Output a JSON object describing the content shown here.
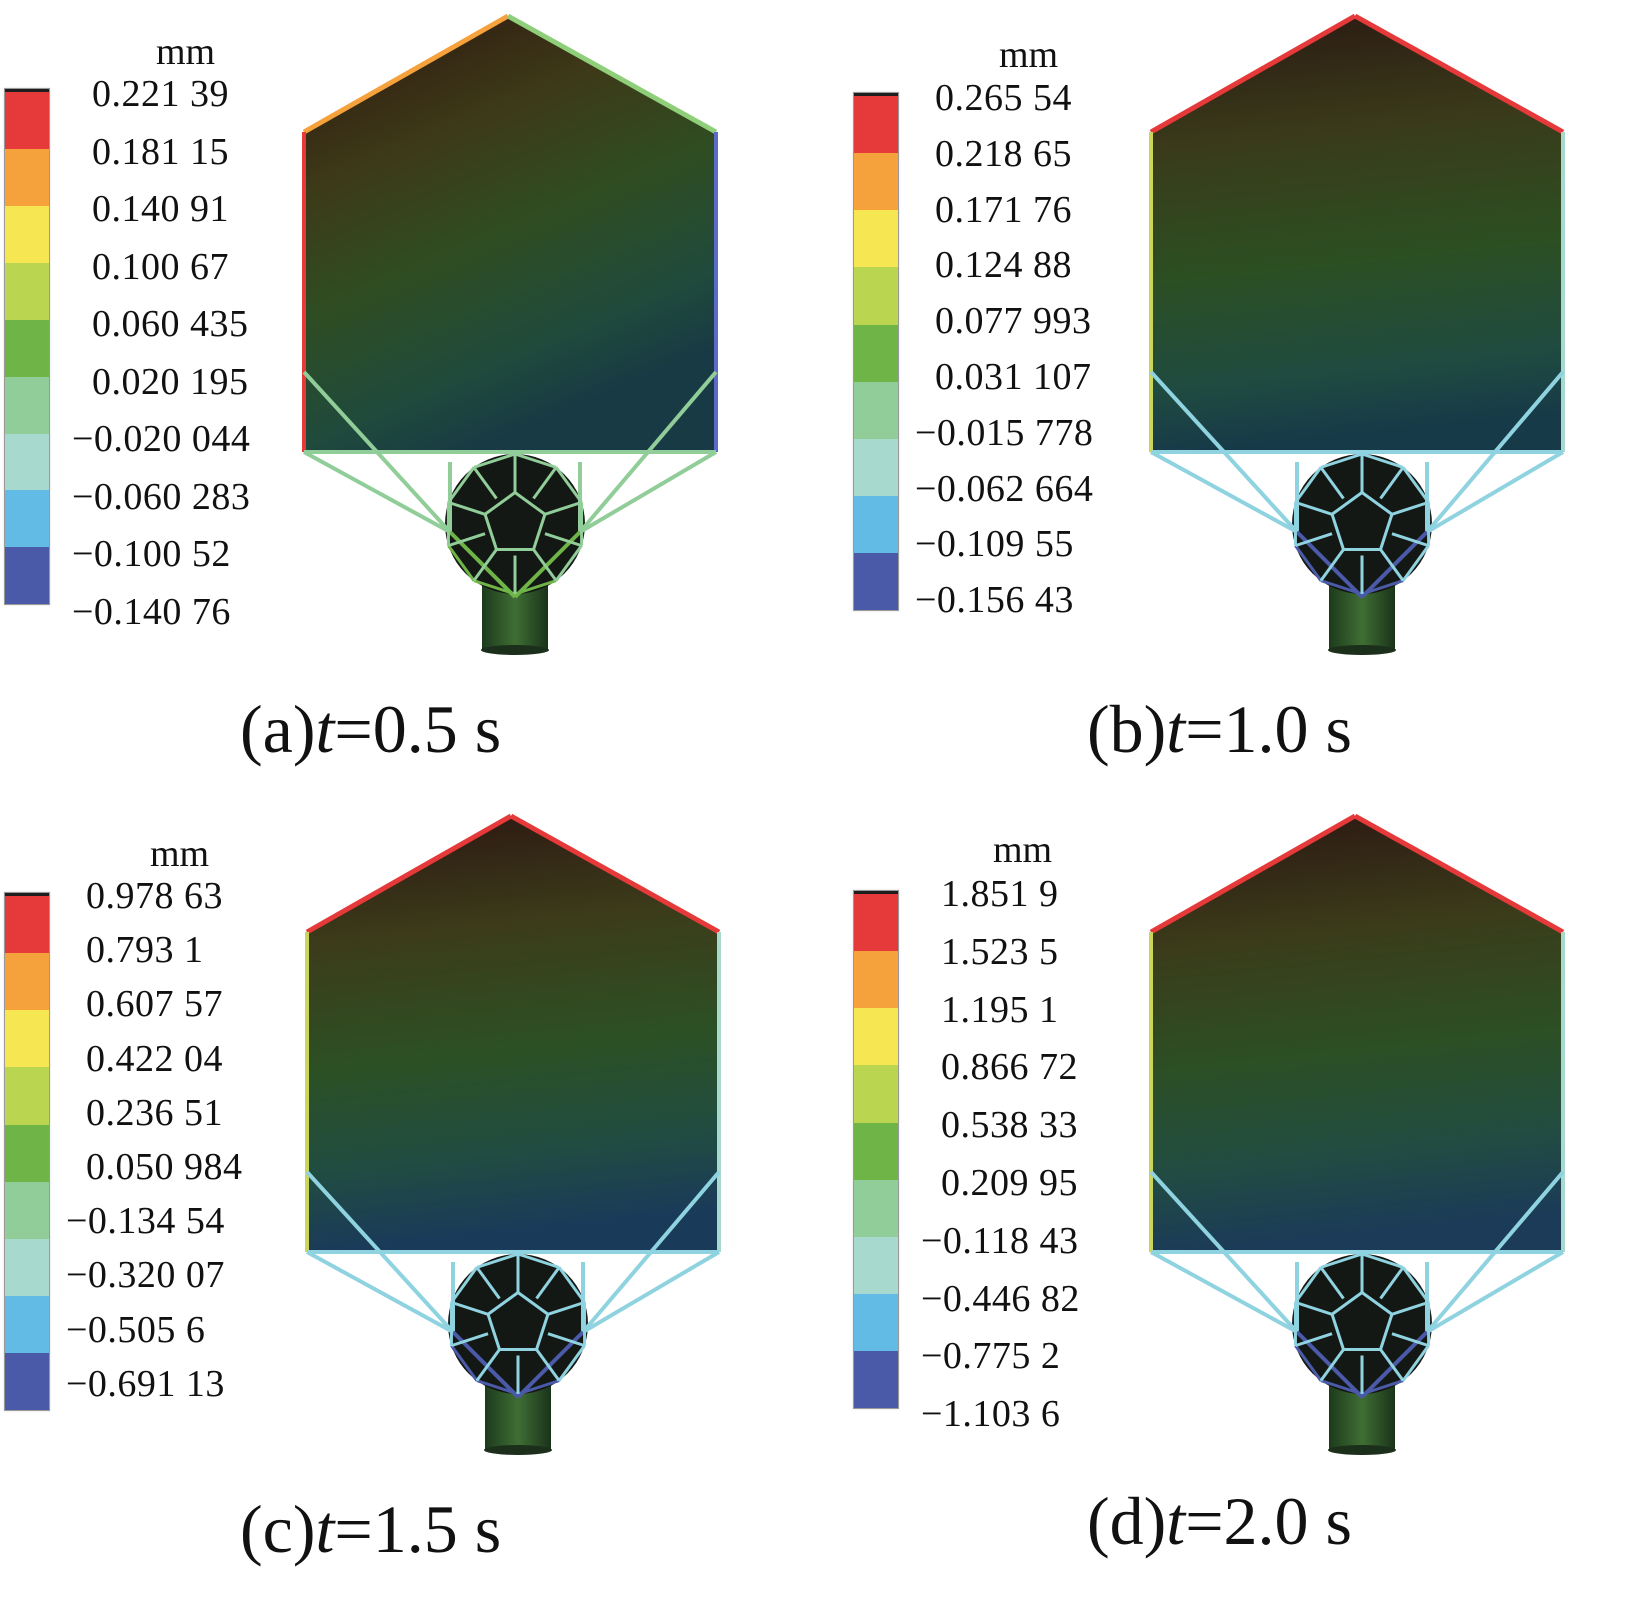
{
  "colors": {
    "legend": [
      "#e5393a",
      "#f5a13c",
      "#f6e752",
      "#bad651",
      "#6fb446",
      "#91cd98",
      "#a8d9cf",
      "#62bbe5",
      "#4a5aa8"
    ],
    "legend_top_cap": "#1e1e1e",
    "dark_top": "#2a1a14",
    "mid_dark": "#3a4a1c",
    "green_dark": "#234a22",
    "blue_dark": "#1c3c3e"
  },
  "panels": [
    {
      "unit": "mm",
      "ticks": [
        "0.221 39",
        "0.181 15",
        "0.140 91",
        "0.100 67",
        "0.060 435",
        "0.020 195",
        "−0.020 044",
        "−0.060 283",
        "−0.100 52",
        "−0.140 76"
      ],
      "caption_prefix": "(a)",
      "caption_var": "t",
      "caption_value": "=0.5 s"
    },
    {
      "unit": "mm",
      "ticks": [
        "0.265 54",
        "0.218 65",
        "0.171 76",
        "0.124 88",
        "0.077 993",
        "0.031 107",
        "−0.015 778",
        "−0.062 664",
        "−0.109 55",
        "−0.156 43"
      ],
      "caption_prefix": "(b)",
      "caption_var": "t",
      "caption_value": "=1.0 s"
    },
    {
      "unit": "mm",
      "ticks": [
        "0.978 63",
        "0.793 1",
        "0.607 57",
        "0.422 04",
        "0.236 51",
        "0.050 984",
        "−0.134 54",
        "−0.320 07",
        "−0.505 6",
        "−0.691 13"
      ],
      "caption_prefix": "(c)",
      "caption_var": "t",
      "caption_value": "=1.5 s"
    },
    {
      "unit": "mm",
      "ticks": [
        "1.851 9",
        "1.523 5",
        "1.195 1",
        "0.866 72",
        "0.538 33",
        "0.209 95",
        "−0.118 43",
        "−0.446 82",
        "−0.775 2",
        "−1.103 6"
      ],
      "caption_prefix": "(d)",
      "caption_var": "t",
      "caption_value": "=2.0 s"
    }
  ]
}
